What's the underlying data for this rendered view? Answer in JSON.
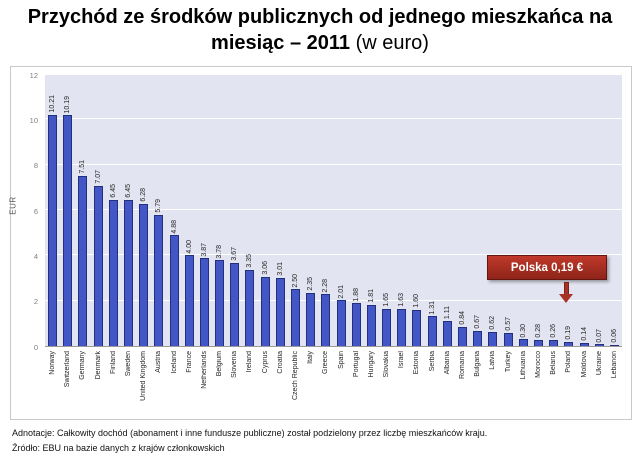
{
  "title": {
    "bold": "Przychód ze środków publicznych od jednego mieszkańca na miesiąc – 2011",
    "normal": "(w euro)"
  },
  "chart_data": {
    "type": "bar",
    "title": "Przychód ze środków publicznych od jednego mieszkańca na miesiąc – 2011 (w euro)",
    "xlabel": "",
    "ylabel": "EUR",
    "ylim": [
      0,
      12
    ],
    "yticks": [
      0,
      2,
      4,
      6,
      8,
      10,
      12
    ],
    "grid": "horizontal",
    "legend": "none",
    "bar_color": "#4257c5",
    "bar_border_color": "#23307e",
    "plot_background": "#e2e4f1",
    "categories": [
      "Norway",
      "Switzerland",
      "Germany",
      "Denmark",
      "Finland",
      "Sweden",
      "United Kingdom",
      "Austria",
      "Iceland",
      "France",
      "Netherlands",
      "Belgium",
      "Slovenia",
      "Ireland",
      "Cyprus",
      "Croatia",
      "Czech Republic",
      "Italy",
      "Greece",
      "Spain",
      "Portugal",
      "Hungary",
      "Slovakia",
      "Israel",
      "Estonia",
      "Serbia",
      "Albania",
      "Romania",
      "Bulgaria",
      "Latvia",
      "Turkey",
      "Lithuania",
      "Morocco",
      "Belarus",
      "Poland",
      "Moldova",
      "Ukraine",
      "Lebanon"
    ],
    "values": [
      10.21,
      10.19,
      7.51,
      7.07,
      6.45,
      6.45,
      6.28,
      5.79,
      4.88,
      4.0,
      3.87,
      3.78,
      3.67,
      3.35,
      3.06,
      3.01,
      2.5,
      2.35,
      2.28,
      2.01,
      1.88,
      1.81,
      1.65,
      1.63,
      1.6,
      1.31,
      1.11,
      0.84,
      0.67,
      0.62,
      0.57,
      0.3,
      0.28,
      0.26,
      0.19,
      0.14,
      0.07,
      0.06
    ]
  },
  "callout": {
    "label": "Polska 0,19 €",
    "target": "Poland",
    "background": "#8e2419"
  },
  "footer": {
    "annotation": "Adnotacje: Całkowity dochód (abonament i inne fundusze publiczne) został podzielony przez liczbę mieszkańców kraju.",
    "source": "Źródło: EBU na bazie danych z krajów członkowskich"
  }
}
